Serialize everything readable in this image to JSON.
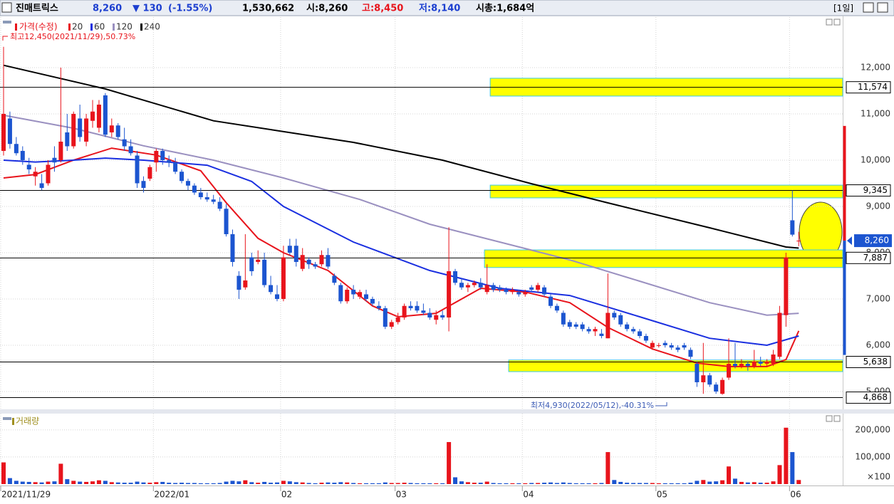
{
  "header": {
    "name": "진매트릭스",
    "price": "8,260",
    "change": "▼ 130",
    "change_pct": "(-1.55%)",
    "volume": "1,530,662",
    "open": "시:8,260",
    "high": "고:8,450",
    "low": "저:8,140",
    "market_cap": "시총:1,684억",
    "period": "[1일]"
  },
  "chart_data": [
    {
      "type": "candlestick",
      "price_label": "가격(수정)",
      "categories": [
        "2021/11/29",
        null,
        null,
        null,
        null,
        null,
        null,
        null,
        null,
        null,
        null,
        null,
        null,
        null,
        null,
        null,
        null,
        null,
        null,
        null,
        null,
        null,
        null,
        null,
        "2022/01",
        null,
        null,
        null,
        null,
        null,
        null,
        null,
        null,
        null,
        null,
        null,
        null,
        null,
        null,
        null,
        null,
        null,
        null,
        null,
        "02",
        null,
        null,
        null,
        null,
        null,
        null,
        null,
        null,
        null,
        null,
        null,
        null,
        null,
        null,
        null,
        null,
        null,
        "03",
        null,
        null,
        null,
        null,
        null,
        null,
        null,
        null,
        null,
        null,
        null,
        null,
        null,
        null,
        null,
        null,
        null,
        null,
        null,
        "04",
        null,
        null,
        null,
        null,
        null,
        null,
        null,
        null,
        null,
        null,
        null,
        null,
        null,
        null,
        null,
        null,
        null,
        null,
        null,
        null,
        "05",
        null,
        null,
        null,
        null,
        null,
        null,
        null,
        null,
        null,
        null,
        null,
        null,
        null,
        null,
        null,
        null,
        null,
        null,
        null,
        null,
        "06",
        null
      ],
      "open": [
        10200,
        10900,
        10350,
        10200,
        9900,
        9650,
        9500,
        9500,
        10050,
        10000,
        10600,
        10300,
        10900,
        10400,
        10850,
        10700,
        11400,
        10600,
        10750,
        10450,
        10300,
        10100,
        9550,
        9600,
        9950,
        10200,
        10000,
        9950,
        9750,
        9550,
        9450,
        9300,
        9200,
        9150,
        9100,
        8950,
        8400,
        7500,
        7250,
        7900,
        7800,
        7850,
        7300,
        7100,
        7000,
        8150,
        8150,
        7650,
        7850,
        7750,
        7750,
        7950,
        7500,
        7300,
        6950,
        7200,
        7050,
        7100,
        7000,
        6850,
        6800,
        6400,
        6500,
        6600,
        6850,
        6850,
        6750,
        6700,
        6550,
        6650,
        6600,
        7600,
        7350,
        7250,
        7300,
        7350,
        7150,
        7300,
        7250,
        7200,
        7150,
        7150,
        7100,
        7250,
        7200,
        7250,
        7050,
        6850,
        6700,
        6500,
        6450,
        6450,
        6350,
        6300,
        6250,
        6150,
        6700,
        6650,
        6450,
        6350,
        6300,
        6200,
        5950,
        6000,
        6050,
        6000,
        5950,
        6000,
        5900,
        5600,
        5200,
        5350,
        5150,
        4950,
        5300,
        5600,
        5550,
        5600,
        5550,
        5650,
        5600,
        5600,
        5750,
        6650,
        8700,
        8260
      ],
      "high": [
        12450,
        11050,
        10500,
        10300,
        10050,
        9850,
        9700,
        10000,
        10300,
        12000,
        11000,
        11050,
        11200,
        11000,
        11300,
        11300,
        11450,
        10900,
        10800,
        10700,
        10450,
        10200,
        9650,
        9900,
        10250,
        10250,
        10100,
        10050,
        9800,
        9600,
        9500,
        9400,
        9300,
        9250,
        9200,
        9050,
        8500,
        7600,
        8400,
        8000,
        8050,
        8000,
        7500,
        7300,
        8150,
        8300,
        8300,
        8100,
        7900,
        7800,
        8050,
        8100,
        7550,
        7350,
        7250,
        7300,
        7200,
        7200,
        7050,
        6950,
        6850,
        6550,
        6700,
        6900,
        6950,
        6950,
        6900,
        6800,
        6750,
        6750,
        8550,
        7650,
        7450,
        7350,
        7400,
        7450,
        7750,
        7350,
        7300,
        7250,
        7250,
        7200,
        7200,
        7300,
        7350,
        7300,
        7100,
        6900,
        6750,
        6550,
        6500,
        6500,
        6400,
        6400,
        6350,
        7550,
        6750,
        6700,
        6500,
        6400,
        6350,
        6250,
        6100,
        6050,
        6100,
        6050,
        6000,
        6050,
        5950,
        5650,
        6050,
        5400,
        5200,
        5300,
        6150,
        6050,
        5700,
        5650,
        5900,
        5750,
        5700,
        5900,
        6850,
        8000,
        9345,
        8450
      ],
      "low": [
        10100,
        10250,
        10100,
        9900,
        9700,
        9450,
        9350,
        9450,
        9750,
        9950,
        10200,
        10250,
        10400,
        10300,
        10700,
        10600,
        10500,
        10500,
        10450,
        10200,
        10100,
        9400,
        9300,
        9550,
        9750,
        9900,
        9850,
        9700,
        9500,
        9350,
        9250,
        9150,
        9100,
        9050,
        8900,
        8350,
        7700,
        7000,
        7200,
        7500,
        7750,
        7250,
        7100,
        6950,
        6950,
        7950,
        7700,
        7600,
        7650,
        7650,
        7700,
        7650,
        7300,
        6900,
        6900,
        7000,
        7000,
        6950,
        6850,
        6750,
        6350,
        6350,
        6450,
        6550,
        6750,
        6700,
        6650,
        6550,
        6450,
        6550,
        6300,
        7300,
        7200,
        7150,
        7250,
        7200,
        7100,
        7150,
        7150,
        7100,
        7100,
        7050,
        7050,
        7150,
        7150,
        7050,
        6800,
        6700,
        6400,
        6350,
        6350,
        6300,
        6250,
        6200,
        6150,
        6150,
        6550,
        6400,
        6300,
        6250,
        6150,
        6050,
        5900,
        5950,
        5950,
        5900,
        5850,
        5900,
        5700,
        5100,
        4950,
        5100,
        4950,
        4930,
        5250,
        5500,
        5500,
        5450,
        5500,
        5550,
        5550,
        5550,
        5700,
        6400,
        8350,
        8140
      ],
      "close": [
        11000,
        10350,
        10150,
        10000,
        9800,
        9750,
        9400,
        9900,
        9950,
        10400,
        10300,
        11000,
        10500,
        10900,
        11050,
        11200,
        10550,
        10750,
        10500,
        10300,
        10150,
        9500,
        9400,
        9850,
        10200,
        10000,
        9950,
        9750,
        9550,
        9450,
        9300,
        9200,
        9150,
        9100,
        8950,
        8400,
        7800,
        7200,
        7400,
        7600,
        7850,
        7300,
        7150,
        7000,
        7900,
        8000,
        7800,
        7950,
        7750,
        7700,
        7950,
        7700,
        7350,
        6950,
        7200,
        7100,
        7150,
        7000,
        6900,
        6800,
        6400,
        6500,
        6600,
        6850,
        6800,
        6750,
        6700,
        6600,
        6650,
        6600,
        7600,
        7350,
        7250,
        7300,
        7350,
        7250,
        7300,
        7200,
        7200,
        7150,
        7200,
        7100,
        7150,
        7200,
        7300,
        7100,
        6850,
        6750,
        6450,
        6400,
        6400,
        6350,
        6300,
        6350,
        6200,
        6700,
        6600,
        6450,
        6350,
        6300,
        6200,
        6100,
        6050,
        6000,
        6000,
        5950,
        5900,
        5950,
        5750,
        5200,
        5350,
        5150,
        5000,
        5250,
        5600,
        5550,
        5600,
        5550,
        5650,
        5600,
        5650,
        5800,
        6700,
        7900,
        8390,
        8260
      ],
      "up_color": "#e8141c",
      "down_color": "#1c55d0",
      "price_color": "#e8141c",
      "series": [
        {
          "name": "20",
          "color": "#e8141c",
          "x": [
            0,
            5,
            11,
            17,
            24,
            31,
            35,
            40,
            44,
            51,
            58,
            62,
            68,
            75,
            82,
            89,
            95,
            102,
            109,
            114,
            120,
            123,
            125
          ],
          "values": [
            9615,
            9690,
            10000,
            10260,
            10110,
            9770,
            9080,
            8310,
            8000,
            7615,
            6850,
            6615,
            6690,
            7230,
            7150,
            6920,
            6385,
            5920,
            5615,
            5540,
            5540,
            5690,
            6310
          ]
        },
        {
          "name": "60",
          "color": "#1a2fe0",
          "x": [
            0,
            5,
            11,
            16,
            22,
            32,
            39,
            44,
            55,
            67,
            78,
            89,
            100,
            111,
            120,
            125
          ],
          "values": [
            10000,
            9960,
            10000,
            10045,
            10000,
            9890,
            9540,
            9000,
            8230,
            7615,
            7230,
            7075,
            6615,
            6150,
            6000,
            6200
          ]
        },
        {
          "name": "120",
          "color": "#9a90c0",
          "x": [
            0,
            11,
            22,
            33,
            44,
            56,
            67,
            78,
            89,
            100,
            111,
            120,
            125
          ],
          "values": [
            10970,
            10690,
            10310,
            10000,
            9615,
            9150,
            8615,
            8230,
            7845,
            7385,
            6920,
            6650,
            6690
          ]
        },
        {
          "name": "240",
          "color": "#000000",
          "x": [
            0,
            16,
            33,
            55,
            69,
            83,
            95,
            111,
            123,
            125
          ],
          "values": [
            12050,
            11540,
            10850,
            10385,
            10000,
            9490,
            9077,
            8538,
            8123,
            8100
          ]
        }
      ],
      "ylim": [
        4615,
        13092
      ],
      "yticks": [
        {
          "value": 5000,
          "label": "5,000"
        },
        {
          "value": 6000,
          "label": "6,000"
        },
        {
          "value": 7000,
          "label": "7,000"
        },
        {
          "value": 8000,
          "label": "8,000"
        },
        {
          "value": 9000,
          "label": "9,000"
        },
        {
          "value": 10000,
          "label": "10,000"
        },
        {
          "value": 11000,
          "label": "11,000"
        },
        {
          "value": 12000,
          "label": "12,000"
        }
      ],
      "grid": true,
      "levels": [
        {
          "value": 11574,
          "label": "11,574"
        },
        {
          "value": 9345,
          "label": "9,345"
        },
        {
          "value": 7887,
          "label": "7,887"
        },
        {
          "value": 5638,
          "label": "5,638"
        },
        {
          "value": 4868,
          "label": "4,868"
        }
      ],
      "highlight_bands": [
        {
          "from": 76.5,
          "range": [
            11385,
            11770
          ]
        },
        {
          "from": 76.5,
          "range": [
            9185,
            9460
          ]
        },
        {
          "from": 75.6,
          "range": [
            7680,
            8060
          ]
        },
        {
          "from": 79.4,
          "range": [
            5430,
            5680
          ]
        }
      ],
      "high_annotation": "최고12,450(2021/11/29),50.73%",
      "low_annotation": "최저4,930(2022/05/12),-40.31%",
      "current_price": {
        "value": 8260,
        "label": "8,260"
      },
      "price_limits": [
        5790,
        10740
      ]
    },
    {
      "type": "bar",
      "title": "거래량",
      "color": "#a09020",
      "values": [
        80000,
        22000,
        12000,
        9000,
        8000,
        7000,
        6000,
        9000,
        10000,
        75000,
        18000,
        12000,
        9000,
        8000,
        10000,
        14000,
        12000,
        7000,
        6000,
        5000,
        5000,
        9000,
        6000,
        5000,
        7000,
        8000,
        5000,
        4000,
        5000,
        4000,
        4000,
        3000,
        3000,
        3000,
        4000,
        9000,
        12000,
        10000,
        14000,
        7000,
        5000,
        8000,
        5000,
        6000,
        12000,
        10000,
        7000,
        6000,
        4000,
        3000,
        5000,
        6000,
        5000,
        7000,
        6000,
        4000,
        3000,
        3000,
        3000,
        3000,
        6000,
        4000,
        4000,
        5000,
        4000,
        3000,
        3000,
        3000,
        3000,
        3000,
        155000,
        25000,
        10000,
        7000,
        5000,
        5000,
        9000,
        4000,
        3000,
        3000,
        3000,
        3000,
        3000,
        4000,
        4000,
        5000,
        6000,
        4000,
        6000,
        4000,
        3000,
        3000,
        3000,
        3000,
        4000,
        118000,
        15000,
        8000,
        5000,
        4000,
        4000,
        4000,
        4000,
        3000,
        3000,
        3000,
        3000,
        3000,
        5000,
        12000,
        15000,
        9000,
        10000,
        14000,
        65000,
        20000,
        8000,
        6000,
        7000,
        5000,
        5000,
        10000,
        70000,
        208000,
        118000,
        15000
      ],
      "ylim": [
        0,
        260000
      ],
      "yticks": [
        {
          "value": 100000,
          "label": "100,000"
        },
        {
          "value": 200000,
          "label": "200,000"
        }
      ],
      "unit_label": "×100",
      "grid": true
    }
  ]
}
